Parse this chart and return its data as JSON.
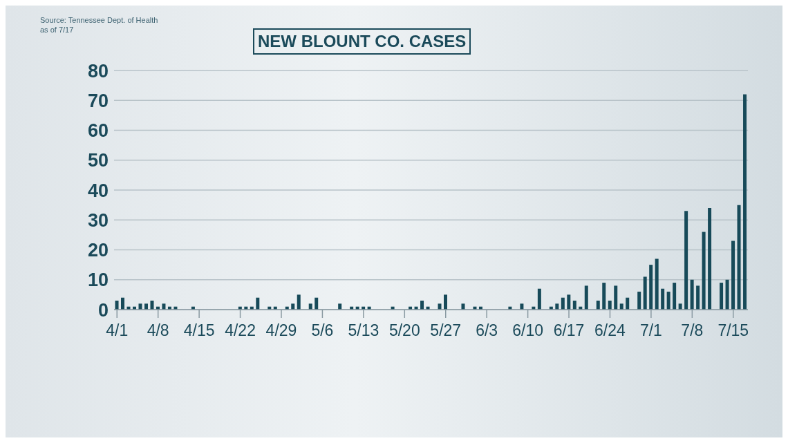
{
  "chart_data": {
    "type": "bar",
    "title": "NEW BLOUNT CO. CASES",
    "annotations": [
      "Source: Tennessee Dept. of Health",
      "as of 7/17"
    ],
    "categories": [
      "4/1",
      null,
      null,
      null,
      null,
      null,
      null,
      "4/8",
      null,
      null,
      null,
      null,
      null,
      null,
      "4/15",
      null,
      null,
      null,
      null,
      null,
      null,
      "4/22",
      null,
      null,
      null,
      null,
      null,
      null,
      "4/29",
      null,
      null,
      null,
      null,
      null,
      null,
      "5/6",
      null,
      null,
      null,
      null,
      null,
      null,
      "5/13",
      null,
      null,
      null,
      null,
      null,
      null,
      "5/20",
      null,
      null,
      null,
      null,
      null,
      null,
      "5/27",
      null,
      null,
      null,
      null,
      null,
      null,
      "6/3",
      null,
      null,
      null,
      null,
      null,
      null,
      "6/10",
      null,
      null,
      null,
      null,
      null,
      null,
      "6/17",
      null,
      null,
      null,
      null,
      null,
      null,
      "6/24",
      null,
      null,
      null,
      null,
      null,
      null,
      "7/1",
      null,
      null,
      null,
      null,
      null,
      null,
      "7/8",
      null,
      null,
      null,
      null,
      null,
      null,
      "7/15",
      null,
      null
    ],
    "values": [
      3,
      4,
      1,
      1,
      2,
      2,
      3,
      1,
      2,
      1,
      1,
      0,
      0,
      1,
      0,
      0,
      0,
      0,
      0,
      0,
      0,
      1,
      1,
      1,
      4,
      0,
      1,
      1,
      0,
      1,
      2,
      5,
      0,
      2,
      4,
      0,
      0,
      0,
      2,
      0,
      1,
      1,
      1,
      1,
      0,
      0,
      0,
      1,
      0,
      0,
      1,
      1,
      3,
      1,
      0,
      2,
      5,
      0,
      0,
      2,
      0,
      1,
      1,
      0,
      0,
      0,
      0,
      1,
      0,
      2,
      0,
      1,
      7,
      0,
      1,
      2,
      4,
      5,
      3,
      1,
      8,
      0,
      3,
      9,
      3,
      8,
      2,
      4,
      0,
      6,
      11,
      15,
      17,
      7,
      6,
      9,
      2,
      33,
      10,
      8,
      26,
      34,
      0,
      9,
      10,
      23,
      35,
      72
    ],
    "color": "#174a59",
    "ylim": [
      0,
      80
    ],
    "yticks": [
      0,
      10,
      20,
      30,
      40,
      50,
      60,
      70,
      80
    ],
    "grid": "y"
  }
}
